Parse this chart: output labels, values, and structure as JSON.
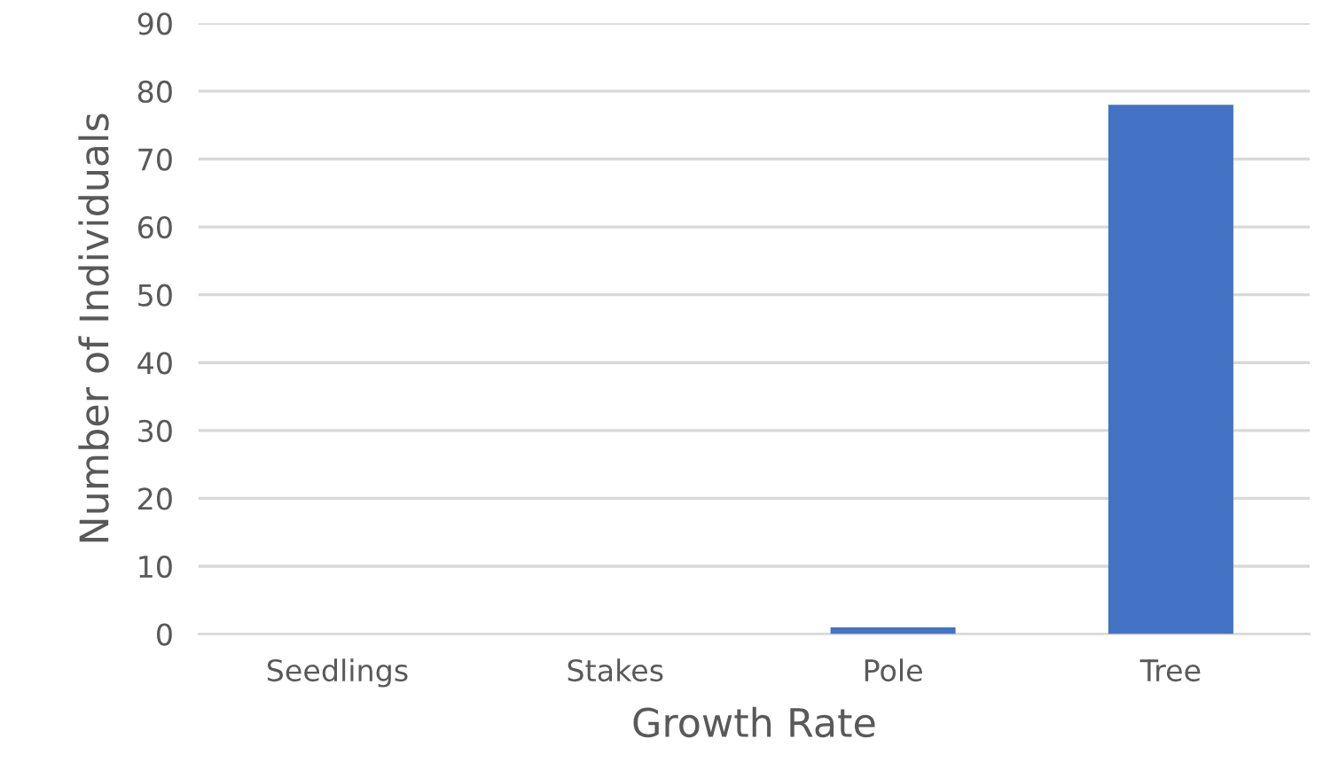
{
  "chart_data": {
    "type": "bar",
    "xlabel": "Growth Rate",
    "ylabel": "Number of Individuals",
    "categories": [
      "Seedlings",
      "Stakes",
      "Pole",
      "Tree"
    ],
    "values": [
      0,
      0,
      1,
      78
    ],
    "color": "#4472c4",
    "ylim": [
      0,
      90
    ],
    "yticks": [
      0,
      10,
      20,
      30,
      40,
      50,
      60,
      70,
      80,
      90
    ],
    "grid": "y"
  }
}
